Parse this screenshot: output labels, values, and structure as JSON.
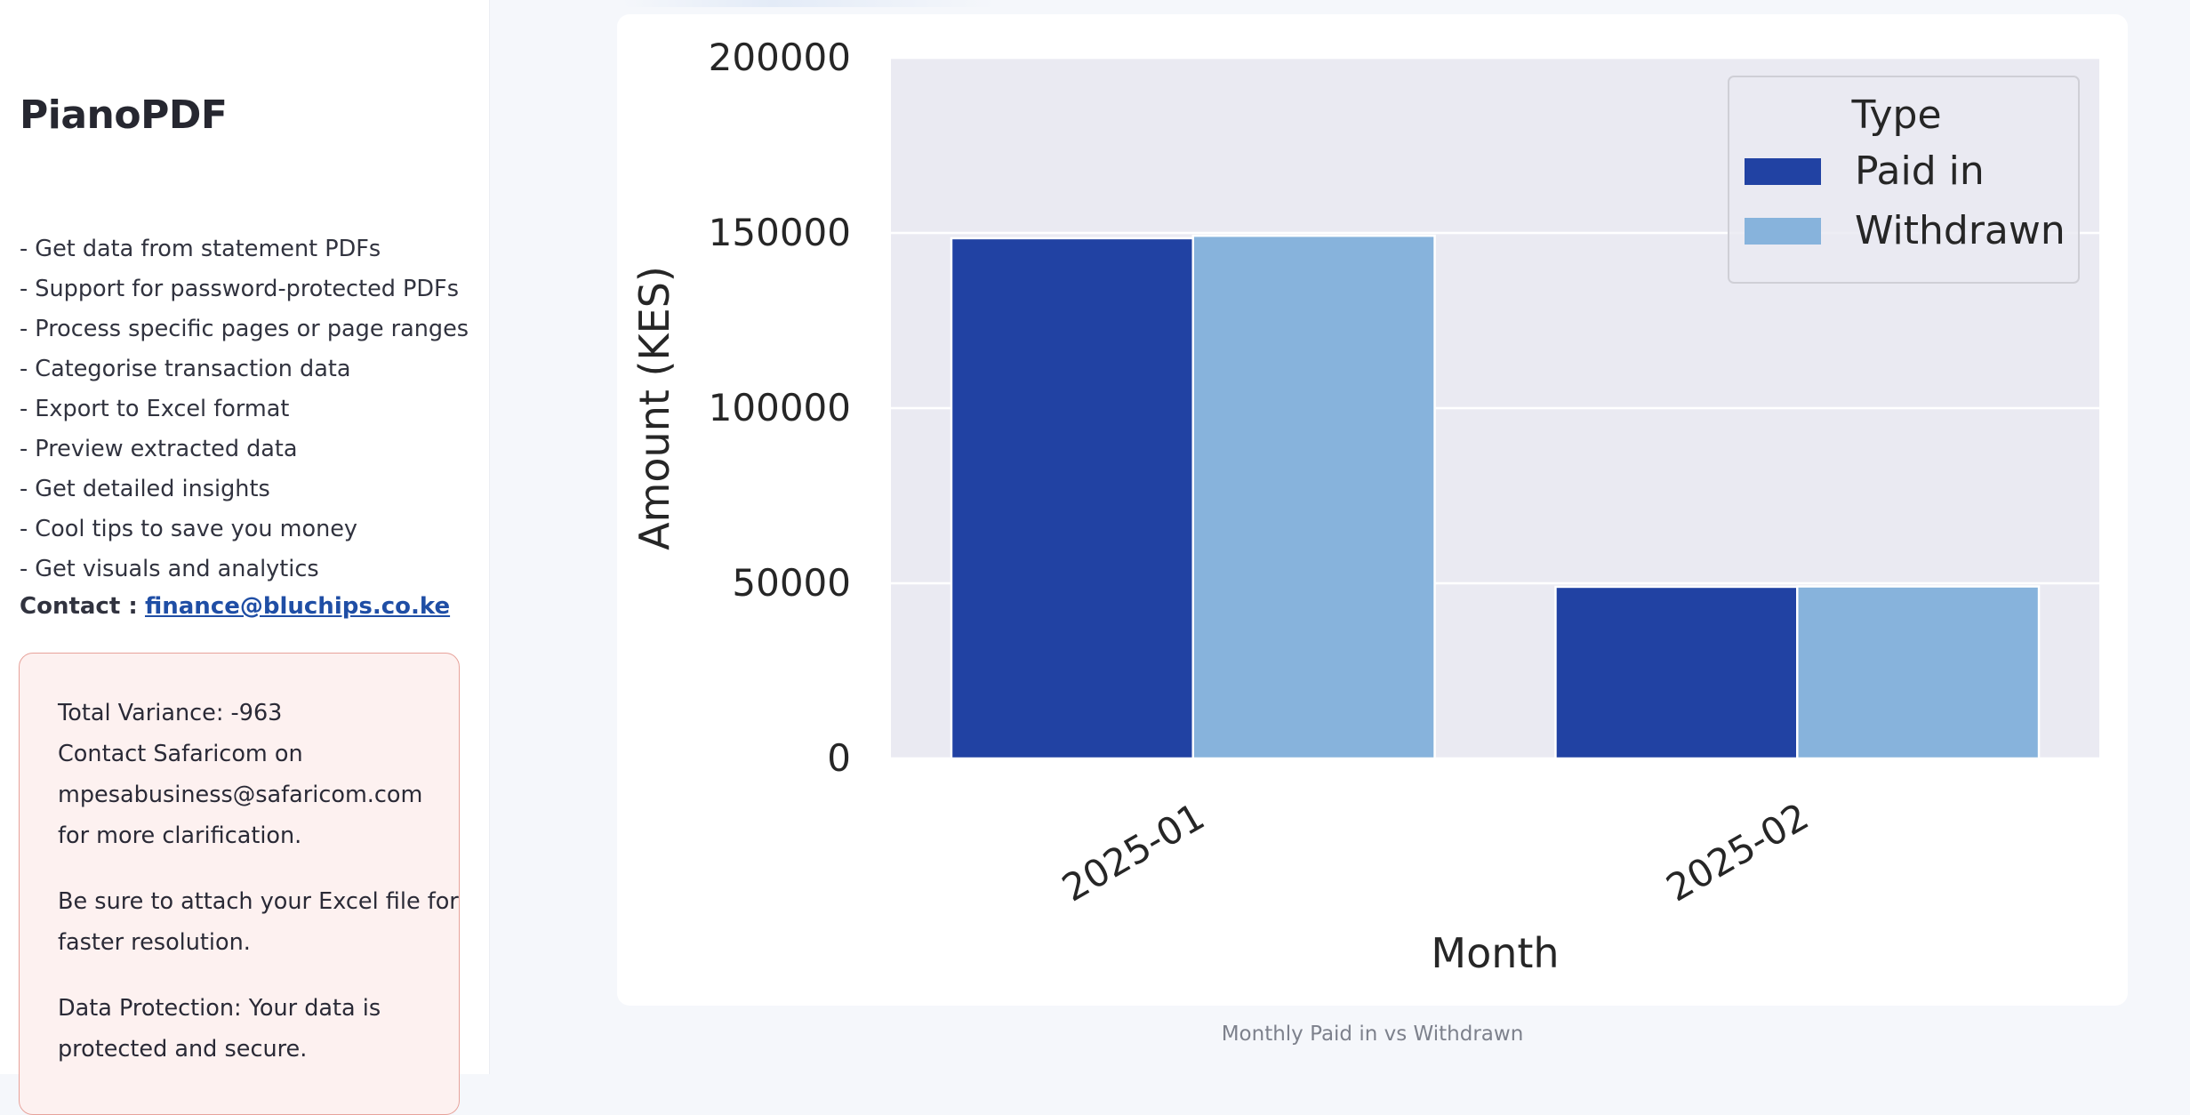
{
  "sidebar": {
    "app_title": "PianoPDF",
    "features": [
      "- Get data from statement PDFs",
      "- Support for password-protected PDFs",
      "- Process specific pages or page ranges",
      "- Categorise transaction data",
      "- Export to Excel format",
      "- Preview extracted data",
      "- Get detailed insights",
      "- Cool tips to save you money",
      "- Get visuals and analytics"
    ],
    "contact": {
      "label": "Contact :",
      "email": "finance@bluchips.co.ke"
    },
    "alert": {
      "lines1": [
        "Total Variance: -963",
        "Contact Safaricom on",
        "mpesabusiness@safaricom.com",
        "for more clarification."
      ],
      "lines2": [
        "Be sure to attach your Excel file for",
        "faster resolution."
      ],
      "lines3": [
        "Data Protection: Your data is",
        "protected and secure."
      ],
      "accent_color": "#e7a39b",
      "background_color": "#fdf1f0"
    }
  },
  "main": {
    "caption": "Monthly Paid in vs Withdrawn"
  },
  "chart_data": {
    "type": "bar",
    "title": "",
    "xlabel": "Month",
    "ylabel": "Amount (KES)",
    "categories": [
      "2025-01",
      "2025-02"
    ],
    "series": [
      {
        "name": "Paid in",
        "values": [
          148500,
          49000
        ],
        "color": "#2142a3"
      },
      {
        "name": "Withdrawn",
        "values": [
          149200,
          49100
        ],
        "color": "#87b3dc"
      }
    ],
    "ylim": [
      0,
      200000
    ],
    "yticks": [
      0,
      50000,
      100000,
      150000,
      200000
    ],
    "ytick_labels": [
      "0",
      "50000",
      "100000",
      "150000",
      "200000"
    ],
    "grid": true,
    "legend": {
      "title": "Type",
      "position": "top-right"
    },
    "plot_background": "#eaeaf2"
  }
}
